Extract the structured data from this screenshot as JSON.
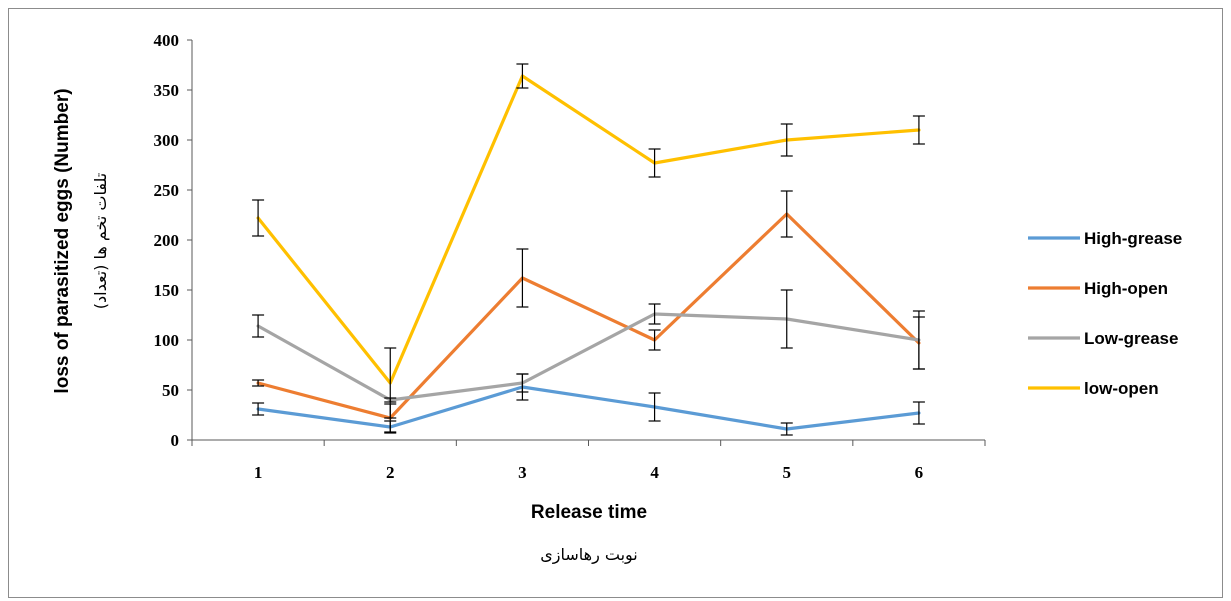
{
  "chart_data": {
    "type": "line",
    "categories": [
      "1",
      "2",
      "3",
      "4",
      "5",
      "6"
    ],
    "xlabel": "Release time",
    "xlabel_secondary": "نوبت رهاسازی",
    "ylabel": "loss of parasitized eggs (Number)",
    "ylabel_secondary": "تلفات تخم ها (تعداد)",
    "ylim": [
      0,
      400
    ],
    "yticks": [
      0,
      50,
      100,
      150,
      200,
      250,
      300,
      350,
      400
    ],
    "grid": false,
    "legend_position": "right",
    "series": [
      {
        "name": "High-grease",
        "color": "#5b9bd5",
        "values": [
          31,
          13,
          53,
          33,
          11,
          27
        ],
        "errors": [
          6,
          6,
          13,
          14,
          6,
          11
        ]
      },
      {
        "name": "High-open",
        "color": "#ed7d31",
        "values": [
          57,
          22,
          162,
          100,
          226,
          97
        ],
        "errors": [
          3,
          14,
          29,
          10,
          23,
          26
        ]
      },
      {
        "name": "Low-grease",
        "color": "#a5a5a5",
        "values": [
          114,
          40,
          57,
          126,
          121,
          100
        ],
        "errors": [
          11,
          2,
          9,
          10,
          29,
          29
        ]
      },
      {
        "name": "low-open",
        "color": "#ffc000",
        "values": [
          222,
          57,
          364,
          277,
          300,
          310
        ],
        "errors": [
          18,
          35,
          12,
          14,
          16,
          14
        ]
      }
    ]
  }
}
